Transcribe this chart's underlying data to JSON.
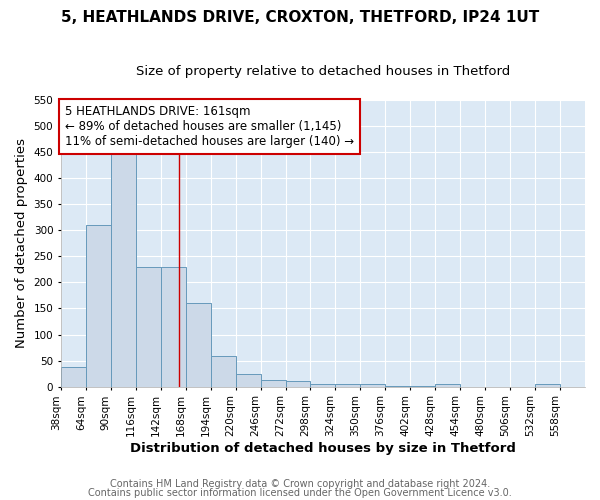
{
  "title1": "5, HEATHLANDS DRIVE, CROXTON, THETFORD, IP24 1UT",
  "title2": "Size of property relative to detached houses in Thetford",
  "xlabel": "Distribution of detached houses by size in Thetford",
  "ylabel": "Number of detached properties",
  "footnote1": "Contains HM Land Registry data © Crown copyright and database right 2024.",
  "footnote2": "Contains public sector information licensed under the Open Government Licence v3.0.",
  "bin_edges": [
    38,
    64,
    90,
    116,
    142,
    168,
    194,
    220,
    246,
    272,
    298,
    324,
    350,
    376,
    402,
    428,
    454,
    480,
    506,
    532,
    558,
    584
  ],
  "bar_heights": [
    38,
    310,
    455,
    230,
    230,
    160,
    58,
    25,
    12,
    10,
    5,
    5,
    5,
    2,
    2,
    5,
    0,
    0,
    0,
    5,
    0
  ],
  "tick_centers": [
    38,
    64,
    90,
    116,
    142,
    168,
    194,
    220,
    246,
    272,
    298,
    324,
    350,
    376,
    402,
    428,
    454,
    480,
    506,
    532,
    558
  ],
  "tick_labels": [
    "38sqm",
    "64sqm",
    "90sqm",
    "116sqm",
    "142sqm",
    "168sqm",
    "194sqm",
    "220sqm",
    "246sqm",
    "272sqm",
    "298sqm",
    "324sqm",
    "350sqm",
    "376sqm",
    "402sqm",
    "428sqm",
    "454sqm",
    "480sqm",
    "506sqm",
    "532sqm",
    "558sqm"
  ],
  "bin_width": 26,
  "bar_color": "#ccd9e8",
  "bar_edge_color": "#6699bb",
  "plot_bg_color": "#dce9f5",
  "fig_bg_color": "#ffffff",
  "grid_color": "#ffffff",
  "red_line_x": 161,
  "annotation_text": "5 HEATHLANDS DRIVE: 161sqm\n← 89% of detached houses are smaller (1,145)\n11% of semi-detached houses are larger (140) →",
  "annotation_box_facecolor": "#ffffff",
  "annotation_box_edgecolor": "#cc0000",
  "ylim": [
    0,
    550
  ],
  "yticks": [
    0,
    50,
    100,
    150,
    200,
    250,
    300,
    350,
    400,
    450,
    500,
    550
  ],
  "title_fontsize": 11,
  "subtitle_fontsize": 9.5,
  "axis_label_fontsize": 9.5,
  "tick_fontsize": 7.5,
  "annotation_fontsize": 8.5,
  "footnote_fontsize": 7,
  "footnote_color": "#666666"
}
